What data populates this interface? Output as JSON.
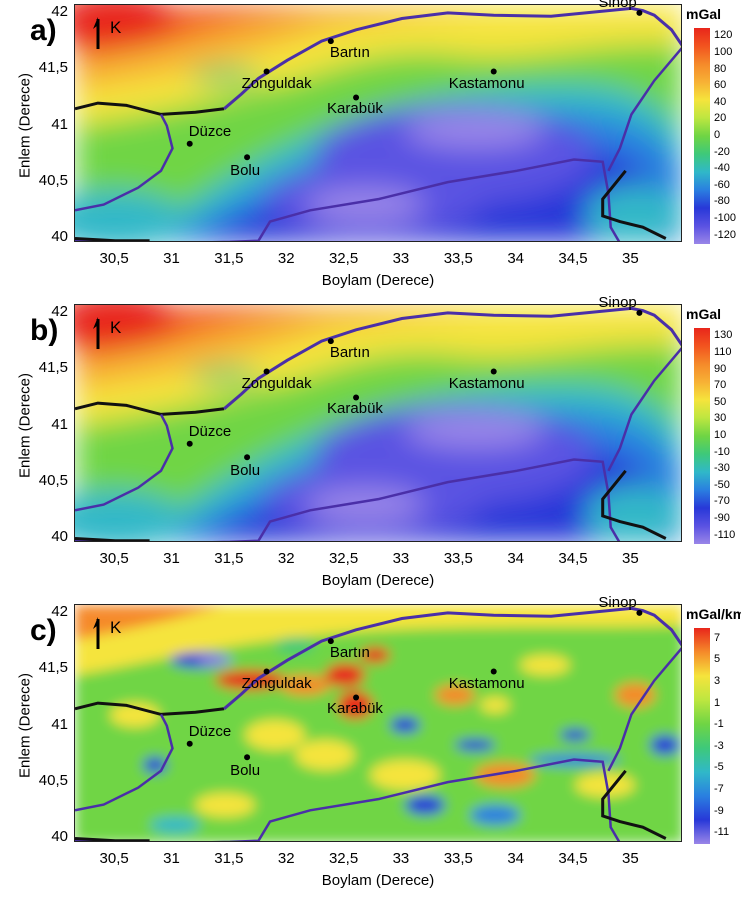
{
  "axes": {
    "xlabel": "Boylam (Derece)",
    "ylabel": "Enlem (Derece)",
    "xticks": [
      "30,5",
      "31",
      "31,5",
      "32",
      "32,5",
      "33",
      "33,5",
      "34",
      "34,5",
      "35"
    ],
    "yticks": [
      "42",
      "41,5",
      "41",
      "40,5",
      "40"
    ],
    "xlim": [
      30.15,
      35.45
    ],
    "ylim": [
      39.96,
      42.07
    ]
  },
  "north_arrow": "K",
  "cities": [
    {
      "name": "Sinop",
      "lon": 35.07,
      "lat": 42.0
    },
    {
      "name": "Bartın",
      "lon": 32.38,
      "lat": 41.75
    },
    {
      "name": "Zonguldak",
      "lon": 31.82,
      "lat": 41.48
    },
    {
      "name": "Kastamonu",
      "lon": 33.8,
      "lat": 41.48
    },
    {
      "name": "Karabük",
      "lon": 32.6,
      "lat": 41.25
    },
    {
      "name": "Düzce",
      "lon": 31.15,
      "lat": 40.84
    },
    {
      "name": "Bolu",
      "lon": 31.65,
      "lat": 40.72
    }
  ],
  "panels": [
    {
      "label": "a)",
      "unit": "mGal",
      "colorbar": [
        "120",
        "100",
        "80",
        "60",
        "40",
        "20",
        "0",
        "-20",
        "-40",
        "-60",
        "-80",
        "-100",
        "-120"
      ]
    },
    {
      "label": "b)",
      "unit": "mGal",
      "colorbar": [
        "130",
        "110",
        "90",
        "70",
        "50",
        "30",
        "10",
        "-10",
        "-30",
        "-50",
        "-70",
        "-90",
        "-110"
      ]
    },
    {
      "label": "c)",
      "unit": "mGal/km",
      "colorbar": [
        "7",
        "5",
        "3",
        "1",
        "-1",
        "-3",
        "-5",
        "-7",
        "-9",
        "-11"
      ]
    }
  ],
  "colors": {
    "high": "#e8261b",
    "orange": "#f58a2a",
    "yellow": "#f5e43c",
    "green": "#46c94a",
    "cyan": "#30b8c8",
    "blue": "#2838d8",
    "low": "#9a86e8",
    "boundary": "#4a2fa8",
    "coast": "#111111"
  }
}
